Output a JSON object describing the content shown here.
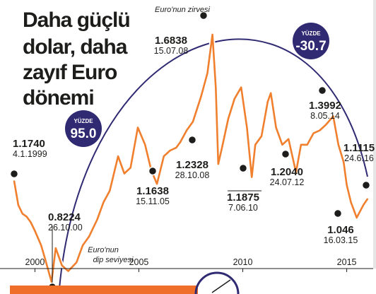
{
  "title_lines": [
    "Daha güçlü",
    "dolar, daha",
    "zayıf Euro",
    "dönemi"
  ],
  "colors": {
    "line": "#f07f2e",
    "arc": "#2f2a72",
    "badge": "#2f2a72",
    "marker": "#1d1d1b",
    "bottom_bar": "#ef6f2a"
  },
  "chart_data": {
    "type": "line",
    "title": "Daha güçlü dolar, daha zayıf Euro dönemi",
    "xlabel": "",
    "ylabel": "",
    "x_ticks": [
      "2000",
      "2005",
      "2010",
      "2015"
    ],
    "xlim": [
      1999.0,
      2016.0
    ],
    "ylim": [
      0.8,
      1.75
    ],
    "grid": false,
    "series": [
      {
        "x": [
          1999.0,
          1999.2,
          1999.4,
          1999.6,
          1999.8,
          2000.0,
          2000.3,
          2000.5,
          2000.8,
          2001.0,
          2001.3,
          2001.6,
          2002.0,
          2002.3,
          2002.6,
          2003.0,
          2003.3,
          2003.6,
          2004.0,
          2004.3,
          2004.6,
          2004.95,
          2005.3,
          2005.6,
          2005.87,
          2006.2,
          2006.5,
          2006.8,
          2007.0,
          2007.3,
          2007.6,
          2008.0,
          2008.3,
          2008.54,
          2008.7,
          2008.82,
          2009.0,
          2009.3,
          2009.6,
          2009.92,
          2010.2,
          2010.43,
          2010.6,
          2010.9,
          2011.2,
          2011.35,
          2011.6,
          2011.9,
          2012.2,
          2012.56,
          2012.8,
          2013.1,
          2013.4,
          2013.7,
          2014.0,
          2014.35,
          2014.6,
          2014.85,
          2015.0,
          2015.2,
          2015.48,
          2015.8,
          2016.0
        ],
        "values": [
          1.174,
          1.09,
          1.06,
          1.05,
          1.03,
          1.0,
          0.95,
          0.9,
          0.8224,
          0.94,
          0.88,
          0.86,
          0.89,
          0.95,
          0.98,
          1.04,
          1.1,
          1.14,
          1.26,
          1.2,
          1.22,
          1.36,
          1.3,
          1.21,
          1.1638,
          1.26,
          1.28,
          1.29,
          1.31,
          1.35,
          1.38,
          1.47,
          1.55,
          1.6838,
          1.5,
          1.2328,
          1.29,
          1.39,
          1.46,
          1.5,
          1.36,
          1.1875,
          1.3,
          1.33,
          1.45,
          1.48,
          1.36,
          1.3,
          1.32,
          1.204,
          1.3,
          1.3,
          1.34,
          1.35,
          1.37,
          1.3992,
          1.3,
          1.24,
          1.16,
          1.1,
          1.046,
          1.09,
          1.1115
        ]
      }
    ],
    "annotations": [
      {
        "label": "1.1740",
        "date": "4.1.1999"
      },
      {
        "label": "0.8224",
        "date": "26.10.00"
      },
      {
        "label": "1.1638",
        "date": "15.11.05"
      },
      {
        "label": "1.6838",
        "date": "15.07.08"
      },
      {
        "label": "1.2328",
        "date": "28.10.08"
      },
      {
        "label": "1.1875",
        "date": "7.06.10"
      },
      {
        "label": "1.2040",
        "date": "24.07.12"
      },
      {
        "label": "1.3992",
        "date": "8.05.14"
      },
      {
        "label": "1.046",
        "date": "16.03.15"
      },
      {
        "label": "1.1115",
        "date": "24.6.16"
      }
    ],
    "notes": {
      "peak": "Euro'nun zirvesi",
      "trough_line1": "Euro'nun",
      "trough_line2": "dip seviyesi"
    },
    "badges": [
      {
        "label": "YÜZDE",
        "value": "95.0"
      },
      {
        "label": "YÜZDE",
        "value": "-30.7"
      }
    ]
  }
}
